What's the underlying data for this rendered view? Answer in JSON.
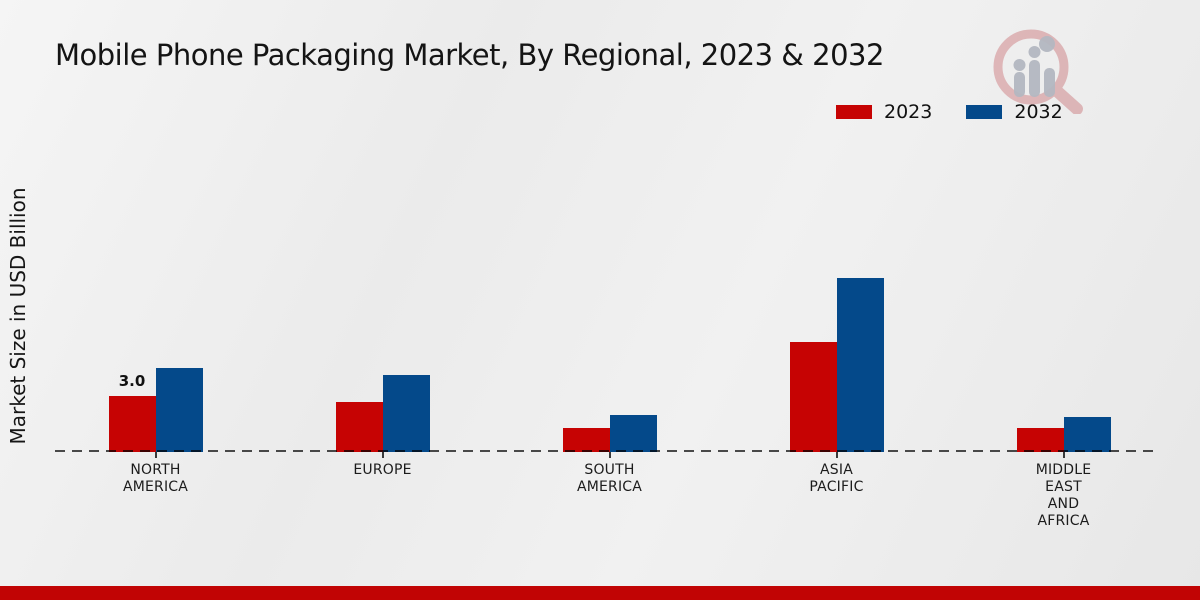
{
  "title": "Mobile Phone Packaging Market, By Regional, 2023 & 2032",
  "y_axis_label": "Market Size in USD Billion",
  "legend": [
    {
      "label": "2023",
      "color": "#c60303"
    },
    {
      "label": "2032",
      "color": "#04498a"
    }
  ],
  "colors": {
    "series_2023": "#c60303",
    "series_2032": "#04498a",
    "footer_bar": "#c10404",
    "baseline": "#2e2e2e",
    "background": "#ededed",
    "text": "#141414"
  },
  "icons": {
    "logo": "magnifier-bar-chart-logo"
  },
  "chart_data": {
    "type": "bar",
    "title": "Mobile Phone Packaging Market, By Regional, 2023 & 2032",
    "xlabel": "",
    "ylabel": "Market Size in USD Billion",
    "categories": [
      "NORTH AMERICA",
      "EUROPE",
      "SOUTH AMERICA",
      "ASIA PACIFIC",
      "MIDDLE EAST AND AFRICA"
    ],
    "category_lines": [
      [
        "NORTH",
        "AMERICA"
      ],
      [
        "EUROPE"
      ],
      [
        "SOUTH",
        "AMERICA"
      ],
      [
        "ASIA",
        "PACIFIC"
      ],
      [
        "MIDDLE",
        "EAST",
        "AND",
        "AFRICA"
      ]
    ],
    "series": [
      {
        "name": "2023",
        "color": "#c60303",
        "values": [
          3.0,
          2.7,
          1.3,
          5.9,
          1.3
        ]
      },
      {
        "name": "2032",
        "color": "#04498a",
        "values": [
          4.5,
          4.1,
          2.0,
          9.3,
          1.9
        ]
      }
    ],
    "data_labels": [
      {
        "series": "2023",
        "category_index": 0,
        "text": "3.0"
      }
    ],
    "ylim": [
      0,
      10
    ],
    "grid": false,
    "baseline_style": "dashed",
    "legend_position": "top-right"
  }
}
